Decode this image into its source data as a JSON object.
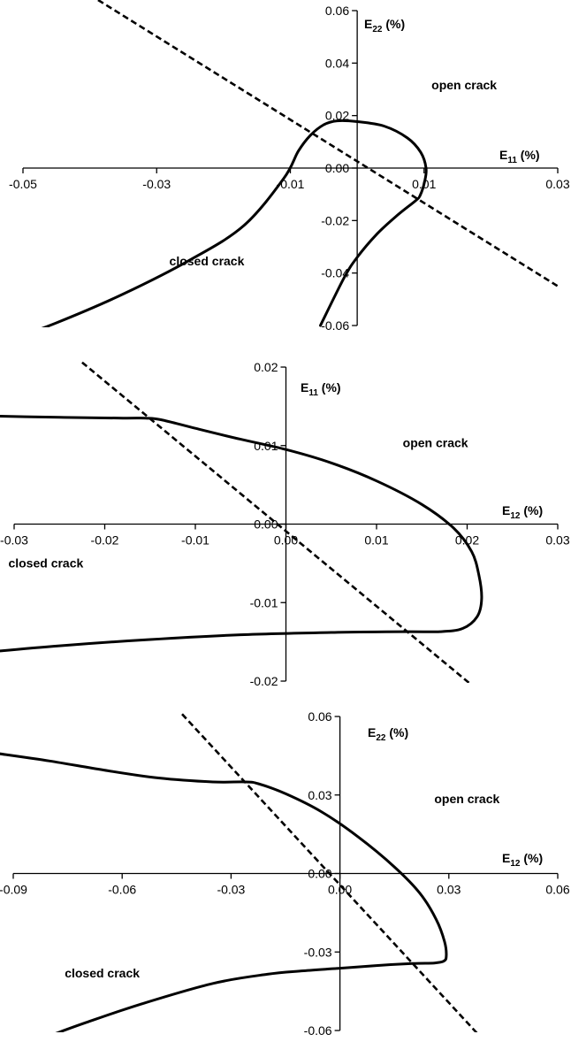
{
  "chart_data": [
    {
      "type": "line",
      "xlabel": {
        "main": "E",
        "sub": "11",
        "unit": " (%)"
      },
      "ylabel": {
        "main": "E",
        "sub": "22",
        "unit": " (%)"
      },
      "xlim": [
        -0.05,
        0.03
      ],
      "ylim": [
        -0.06,
        0.06
      ],
      "xticks": [
        "-0.05",
        "-0.03",
        "-0.01",
        "0.01",
        "0.03"
      ],
      "xtick_values": [
        -0.05,
        -0.03,
        -0.01,
        0.01,
        0.03
      ],
      "yticks": [
        "0.06",
        "0.04",
        "0.02",
        "0.00",
        "-0.02",
        "-0.04",
        "-0.06"
      ],
      "ytick_values": [
        0.06,
        0.04,
        0.02,
        0.0,
        -0.02,
        -0.04,
        -0.06
      ],
      "grid": false,
      "annotations": [
        {
          "text": "open crack",
          "x": 0.016,
          "y": 0.03
        },
        {
          "text": "closed crack",
          "x": -0.0225,
          "y": -0.037
        }
      ],
      "series": [
        {
          "style": "solid",
          "x": [
            -0.0525,
            -0.045,
            -0.035,
            -0.025,
            -0.017,
            -0.011,
            -0.0088,
            -0.007,
            -0.005,
            -0.003,
            0.0,
            0.004,
            0.0075,
            0.0095,
            0.0103,
            0.0101,
            0.0094,
            0.0087,
            0.006,
            0.003,
            0.0,
            -0.002,
            -0.0055
          ],
          "y": [
            -0.066,
            -0.059,
            -0.048,
            -0.035,
            -0.022,
            -0.004,
            0.0065,
            0.0125,
            0.0165,
            0.018,
            0.0177,
            0.016,
            0.0115,
            0.006,
            0.0,
            -0.005,
            -0.0105,
            -0.0125,
            -0.018,
            -0.025,
            -0.034,
            -0.042,
            -0.06
          ]
        },
        {
          "style": "dashed",
          "x": [
            -0.04,
            0.03
          ],
          "y": [
            0.066,
            -0.045
          ]
        }
      ]
    },
    {
      "type": "line",
      "xlabel": {
        "main": "E",
        "sub": "12",
        "unit": " (%)"
      },
      "ylabel": {
        "main": "E",
        "sub": "11",
        "unit": " (%)"
      },
      "xlim": [
        -0.03,
        0.03
      ],
      "ylim": [
        -0.02,
        0.02
      ],
      "xticks": [
        "-0.03",
        "-0.02",
        "-0.01",
        "0.00",
        "0.01",
        "0.02",
        "0.03"
      ],
      "xtick_values": [
        -0.03,
        -0.02,
        -0.01,
        0.0,
        0.01,
        0.02,
        0.03
      ],
      "yticks": [
        "0.02",
        "0.01",
        "0.00",
        "-0.01",
        "-0.02"
      ],
      "ytick_values": [
        0.02,
        0.01,
        0.0,
        -0.01,
        -0.02
      ],
      "grid": false,
      "annotations": [
        {
          "text": "open crack",
          "x": 0.0165,
          "y": 0.0098
        },
        {
          "text": "closed crack",
          "x": -0.0265,
          "y": -0.0055
        }
      ],
      "series": [
        {
          "style": "solid",
          "x": [
            -0.034,
            -0.025,
            -0.018,
            -0.0155,
            -0.0138,
            -0.01,
            -0.005,
            0.0,
            0.005,
            0.01,
            0.015,
            0.0185,
            0.0205,
            0.0213,
            0.0216,
            0.0211,
            0.0195,
            0.017,
            0.013,
            0.005,
            -0.005,
            -0.015,
            -0.025,
            -0.032
          ],
          "y": [
            0.0138,
            0.0136,
            0.0135,
            0.0135,
            0.0133,
            0.0122,
            0.0108,
            0.0095,
            0.0078,
            0.0055,
            0.0025,
            -0.0005,
            -0.0035,
            -0.0065,
            -0.0095,
            -0.0118,
            -0.0133,
            -0.0137,
            -0.0137,
            -0.0138,
            -0.0141,
            -0.0147,
            -0.0155,
            -0.0162
          ]
        },
        {
          "style": "dashed",
          "x": [
            -0.0225,
            0.0205
          ],
          "y": [
            0.0206,
            -0.0205
          ]
        }
      ]
    },
    {
      "type": "line",
      "xlabel": {
        "main": "E",
        "sub": "12",
        "unit": " (%)"
      },
      "ylabel": {
        "main": "E",
        "sub": "22",
        "unit": " (%)"
      },
      "xlim": [
        -0.09,
        0.06
      ],
      "ylim": [
        -0.06,
        0.06
      ],
      "xticks": [
        "-0.09",
        "-0.06",
        "-0.03",
        "0.00",
        "0.03",
        "0.06"
      ],
      "xtick_values": [
        -0.09,
        -0.06,
        -0.03,
        0.0,
        0.03,
        0.06
      ],
      "yticks": [
        "0.06",
        "0.03",
        "0.00",
        "-0.03",
        "-0.06"
      ],
      "ytick_values": [
        0.06,
        0.03,
        0.0,
        -0.03,
        -0.06
      ],
      "grid": false,
      "annotations": [
        {
          "text": "open crack",
          "x": 0.035,
          "y": 0.0268
        },
        {
          "text": "closed crack",
          "x": -0.0655,
          "y": -0.0397
        }
      ],
      "series": [
        {
          "style": "solid",
          "x": [
            -0.095,
            -0.08,
            -0.065,
            -0.05,
            -0.035,
            -0.026,
            -0.0225,
            -0.015,
            -0.005,
            0.005,
            0.015,
            0.022,
            0.0265,
            0.0288,
            0.0293,
            0.0286,
            0.026,
            0.02,
            0.01,
            0.0,
            -0.01,
            -0.02,
            -0.035,
            -0.055,
            -0.07,
            -0.08
          ],
          "y": [
            0.046,
            0.043,
            0.0395,
            0.0365,
            0.035,
            0.035,
            0.0343,
            0.0305,
            0.0235,
            0.014,
            0.0025,
            -0.0075,
            -0.0175,
            -0.026,
            -0.0315,
            -0.0335,
            -0.0342,
            -0.0344,
            -0.0352,
            -0.0362,
            -0.0372,
            -0.0385,
            -0.042,
            -0.05,
            -0.057,
            -0.062
          ]
        },
        {
          "style": "dashed",
          "x": [
            -0.0435,
            0.0377
          ],
          "y": [
            0.0609,
            -0.0609
          ]
        }
      ]
    }
  ]
}
